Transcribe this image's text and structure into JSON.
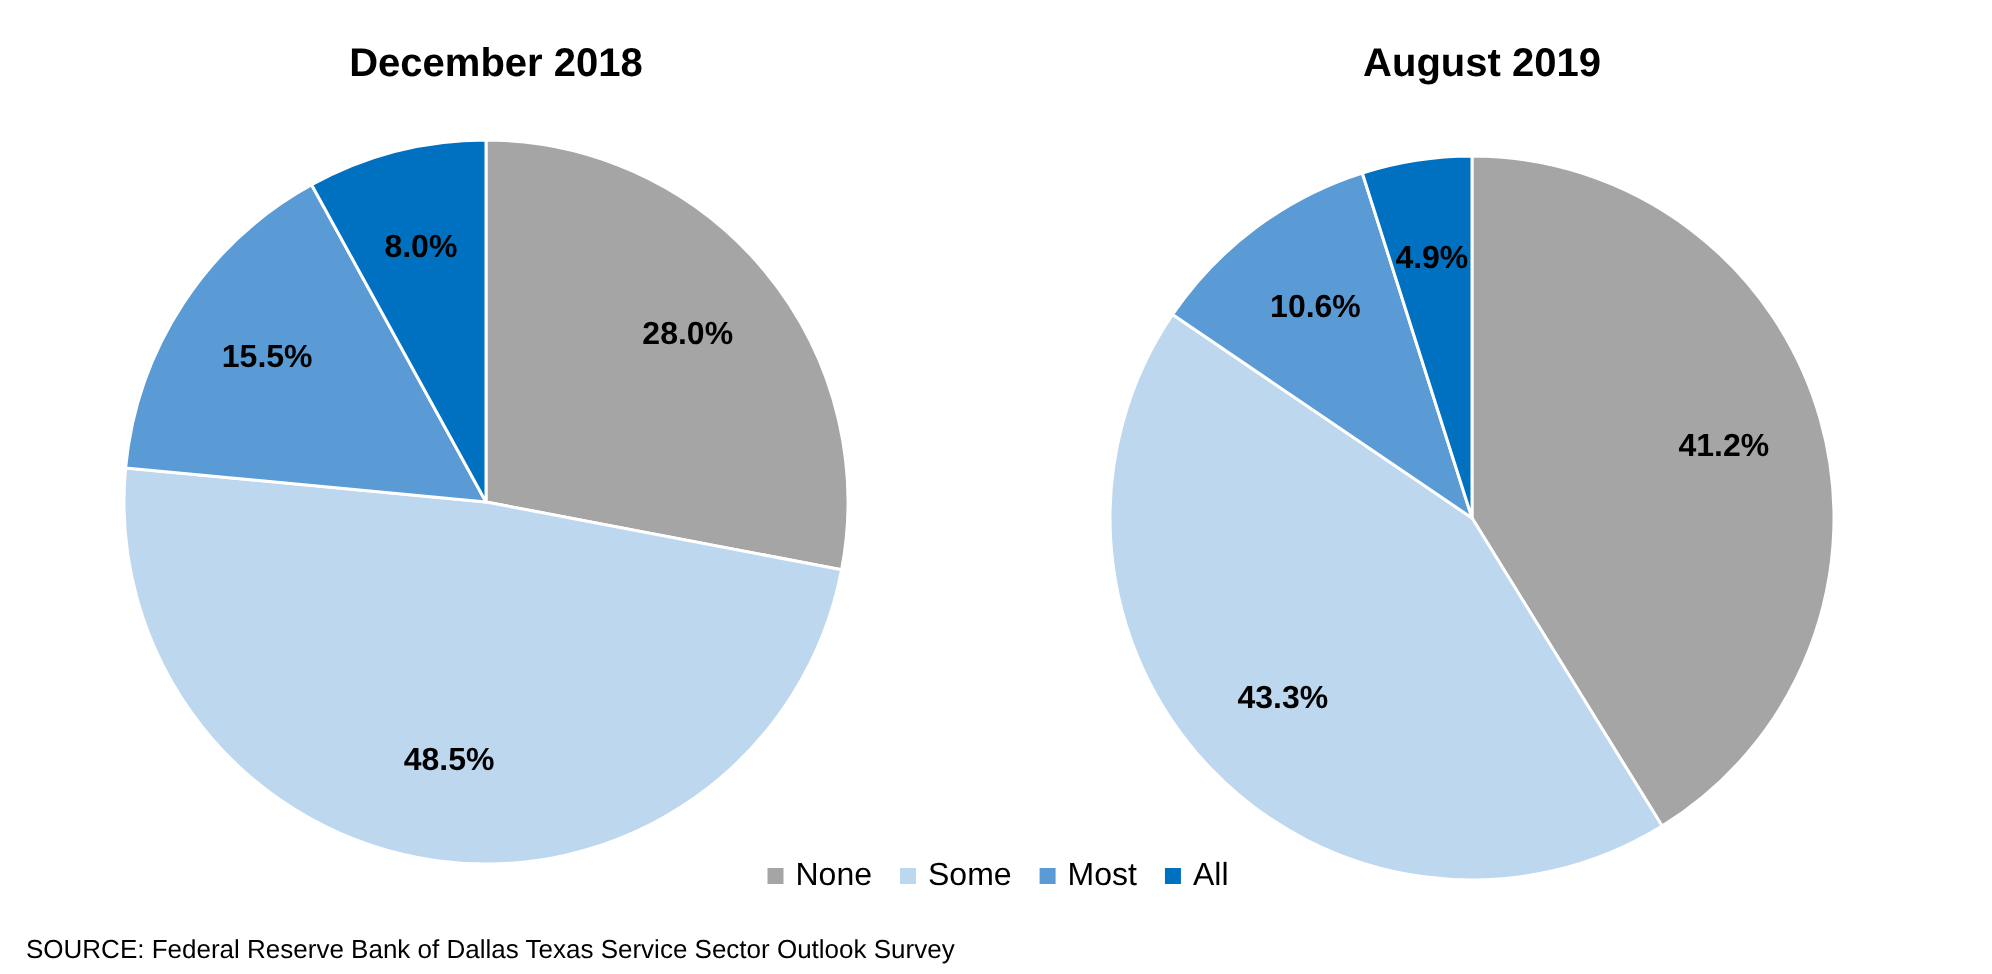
{
  "chart_data": [
    {
      "type": "pie",
      "title": "December 2018",
      "categories": [
        null,
        null,
        null,
        null
      ],
      "values": [
        28.0,
        48.5,
        15.5,
        8.0
      ],
      "colors": [
        "#a5a5a5",
        "#bdd7ee",
        "#5b9bd5",
        "#0070c0"
      ],
      "value_labels": [
        "28.0%",
        "48.5%",
        "15.5%",
        "8.0%"
      ],
      "annotations": [
        "SOURCE: Federal Reserve Bank of Dallas Texas Service Sector Outlook Survey"
      ]
    },
    {
      "type": "pie",
      "title": "August 2019",
      "categories": [
        "None",
        "Some",
        "Most",
        "All"
      ],
      "values": [
        41.2,
        43.3,
        10.6,
        4.9
      ],
      "colors": [
        "#a5a5a5",
        "#bdd7ee",
        "#5b9bd5",
        "#0070c0"
      ],
      "value_labels": [
        "41.2%",
        "43.3%",
        "10.6%",
        "4.9%"
      ],
      "legend": "bottom"
    }
  ]
}
